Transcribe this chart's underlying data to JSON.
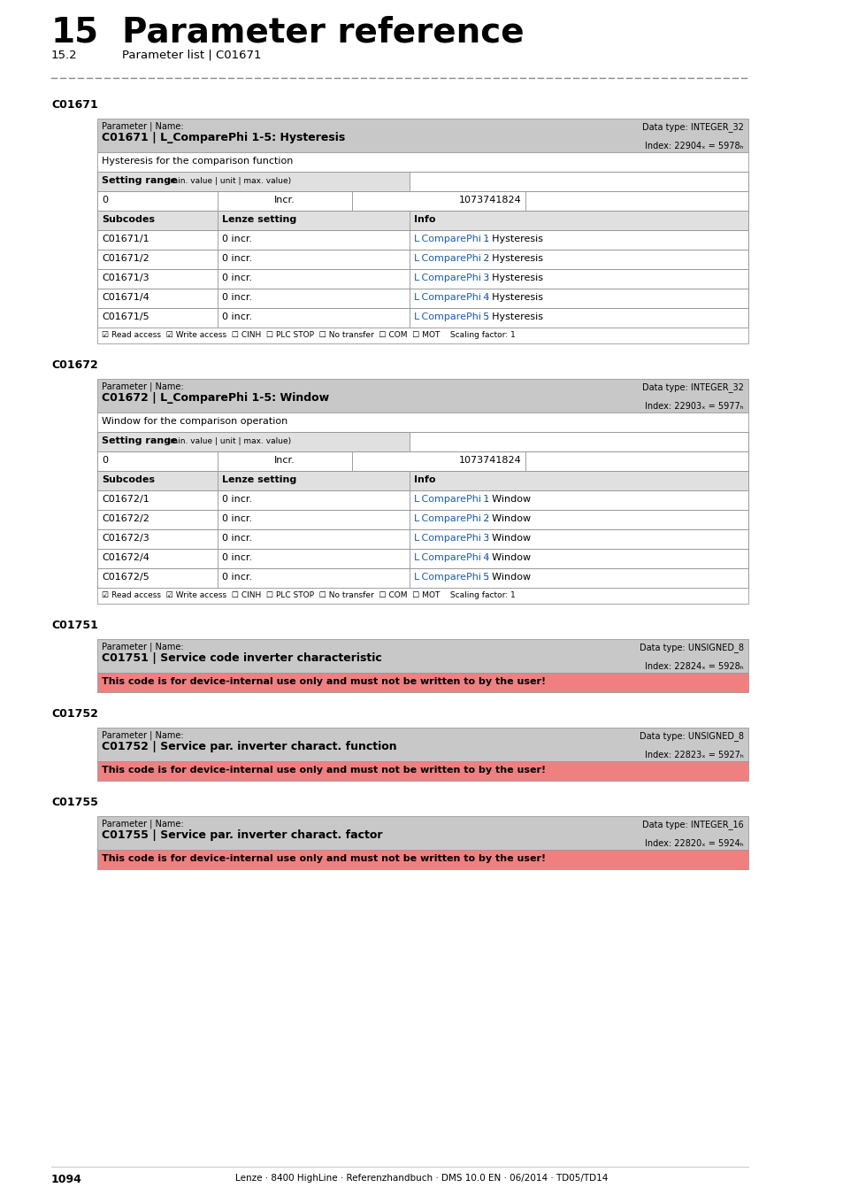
{
  "title_number": "15",
  "title_text": "Parameter reference",
  "subtitle_number": "15.2",
  "subtitle_text": "Parameter list | C01671",
  "page_bg": "#ffffff",
  "sections": [
    {
      "label": "C01671",
      "param_label": "Parameter | Name:",
      "param_name": "C01671 | L_ComparePhi 1-5: Hysteresis",
      "data_type": "Data type: INTEGER_32",
      "index": "Index: 22904ₓ = 5978ₕ",
      "description": "Hysteresis for the comparison function",
      "setting_range_label": "Setting range",
      "setting_range_small": " (min. value | unit | max. value)",
      "setting_min": "0",
      "setting_incr": "Incr.",
      "setting_max": "1073741824",
      "subcodes_header": "Subcodes",
      "lenze_header": "Lenze setting",
      "info_header": "Info",
      "rows": [
        {
          "subcode": "C01671/1",
          "info_link": "L_ComparePhi_1",
          "info_suffix": ": Hysteresis"
        },
        {
          "subcode": "C01671/2",
          "info_link": "L_ComparePhi_2",
          "info_suffix": ": Hysteresis"
        },
        {
          "subcode": "C01671/3",
          "info_link": "L_ComparePhi_3",
          "info_suffix": ": Hysteresis"
        },
        {
          "subcode": "C01671/4",
          "info_link": "L_ComparePhi_4",
          "info_suffix": ": Hysteresis"
        },
        {
          "subcode": "C01671/5",
          "info_link": "L_ComparePhi_5",
          "info_suffix": ": Hysteresis"
        }
      ],
      "footer": "☑ Read access  ☑ Write access  ☐ CINH  ☐ PLC STOP  ☐ No transfer  ☐ COM  ☐ MOT    Scaling factor: 1"
    },
    {
      "label": "C01672",
      "param_label": "Parameter | Name:",
      "param_name": "C01672 | L_ComparePhi 1-5: Window",
      "data_type": "Data type: INTEGER_32",
      "index": "Index: 22903ₓ = 5977ₕ",
      "description": "Window for the comparison operation",
      "setting_range_label": "Setting range",
      "setting_range_small": " (min. value | unit | max. value)",
      "setting_min": "0",
      "setting_incr": "Incr.",
      "setting_max": "1073741824",
      "subcodes_header": "Subcodes",
      "lenze_header": "Lenze setting",
      "info_header": "Info",
      "rows": [
        {
          "subcode": "C01672/1",
          "info_link": "L_ComparePhi_1",
          "info_suffix": ": Window"
        },
        {
          "subcode": "C01672/2",
          "info_link": "L_ComparePhi_2",
          "info_suffix": ": Window"
        },
        {
          "subcode": "C01672/3",
          "info_link": "L_ComparePhi_3",
          "info_suffix": ": Window"
        },
        {
          "subcode": "C01672/4",
          "info_link": "L_ComparePhi_4",
          "info_suffix": ": Window"
        },
        {
          "subcode": "C01672/5",
          "info_link": "L_ComparePhi_5",
          "info_suffix": ": Window"
        }
      ],
      "footer": "☑ Read access  ☑ Write access  ☐ CINH  ☐ PLC STOP  ☐ No transfer  ☐ COM  ☐ MOT    Scaling factor: 1"
    }
  ],
  "simple_sections": [
    {
      "label": "C01751",
      "param_label": "Parameter | Name:",
      "param_name": "C01751 | Service code inverter characteristic",
      "data_type": "Data type: UNSIGNED_8",
      "index": "Index: 22824ₓ = 5928ₕ",
      "warning": "This code is for device-internal use only and must not be written to by the user!"
    },
    {
      "label": "C01752",
      "param_label": "Parameter | Name:",
      "param_name": "C01752 | Service par. inverter charact. function",
      "data_type": "Data type: UNSIGNED_8",
      "index": "Index: 22823ₓ = 5927ₕ",
      "warning": "This code is for device-internal use only and must not be written to by the user!"
    },
    {
      "label": "C01755",
      "param_label": "Parameter | Name:",
      "param_name": "C01755 | Service par. inverter charact. factor",
      "data_type": "Data type: INTEGER_16",
      "index": "Index: 22820ₓ = 5924ₕ",
      "warning": "This code is for device-internal use only and must not be written to by the user!"
    }
  ],
  "footer_text": "Lenze · 8400 HighLine · Referenzhandbuch · DMS 10.0 EN · 06/2014 · TD05/TD14",
  "page_number": "1094",
  "colors": {
    "header_bg": "#c8c8c8",
    "subheader_bg": "#e0e0e0",
    "row_bg": "#ffffff",
    "border": "#999999",
    "link_blue": "#1a5cb8",
    "warning_bg": "#f08080",
    "text": "#000000",
    "dashed_line": "#888888",
    "footer_line": "#cccccc",
    "white": "#ffffff"
  }
}
